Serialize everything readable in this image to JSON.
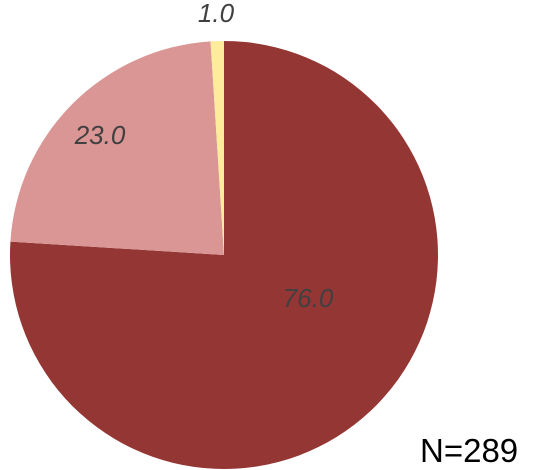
{
  "chart_data": {
    "type": "pie",
    "slices": [
      {
        "value": 76.0,
        "label": "76.0",
        "color": "#943634"
      },
      {
        "value": 23.0,
        "label": "23.0",
        "color": "#d99694"
      },
      {
        "value": 1.0,
        "label": "1.0",
        "color": "#ffeb9c"
      }
    ],
    "start_angle_deg": 0,
    "direction": "clockwise",
    "legend": "none",
    "annotation": "N=289"
  }
}
